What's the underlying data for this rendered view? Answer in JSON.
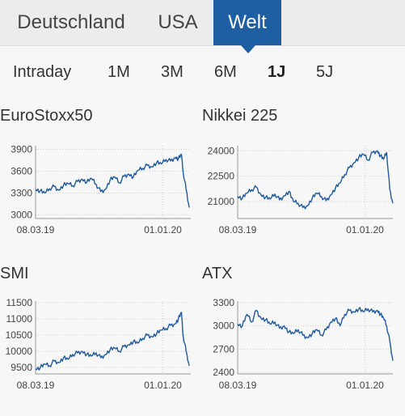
{
  "region_tabs": [
    {
      "label": "Deutschland",
      "active": false
    },
    {
      "label": "USA",
      "active": false
    },
    {
      "label": "Welt",
      "active": true
    }
  ],
  "range_tabs": [
    {
      "label": "Intraday",
      "active": false
    },
    {
      "label": "1M",
      "active": false
    },
    {
      "label": "3M",
      "active": false
    },
    {
      "label": "6M",
      "active": false
    },
    {
      "label": "1J",
      "active": true
    },
    {
      "label": "5J",
      "active": false
    }
  ],
  "colors": {
    "accent": "#1e5fa3",
    "line": "#1f5a9e",
    "grid": "#cfcfcf"
  },
  "chart_data": [
    {
      "type": "line",
      "title": "EuroStoxx50",
      "y_ticks": [
        "3900",
        "3600",
        "3300",
        "3000"
      ],
      "y_tick_values": [
        3900,
        3600,
        3300,
        3000
      ],
      "x_ticks": [
        "08.03.19",
        "01.01.20"
      ],
      "x_tick_positions": [
        0.0,
        0.82
      ],
      "ylim": [
        2950,
        3950
      ],
      "grid": true,
      "series": [
        {
          "x": [
            0.0,
            0.03,
            0.06,
            0.09,
            0.12,
            0.15,
            0.18,
            0.21,
            0.24,
            0.27,
            0.3,
            0.33,
            0.36,
            0.39,
            0.42,
            0.45,
            0.48,
            0.51,
            0.54,
            0.57,
            0.6,
            0.63,
            0.66,
            0.69,
            0.72,
            0.75,
            0.78,
            0.81,
            0.84,
            0.87,
            0.9,
            0.92,
            0.94,
            0.95,
            0.97,
            0.99
          ],
          "values": [
            3350,
            3330,
            3300,
            3360,
            3390,
            3340,
            3410,
            3430,
            3400,
            3460,
            3490,
            3450,
            3500,
            3420,
            3320,
            3350,
            3480,
            3520,
            3440,
            3530,
            3560,
            3520,
            3610,
            3640,
            3680,
            3660,
            3720,
            3700,
            3760,
            3740,
            3790,
            3770,
            3830,
            3600,
            3350,
            3100
          ]
        }
      ]
    },
    {
      "type": "line",
      "title": "Nikkei 225",
      "y_ticks": [
        "24000",
        "22500",
        "21000"
      ],
      "y_tick_values": [
        24000,
        22500,
        21000
      ],
      "x_ticks": [
        "08.03.19",
        "01.01.20"
      ],
      "x_tick_positions": [
        0.0,
        0.82
      ],
      "ylim": [
        20000,
        24300
      ],
      "grid": true,
      "series": [
        {
          "x": [
            0.0,
            0.03,
            0.06,
            0.09,
            0.12,
            0.15,
            0.18,
            0.21,
            0.24,
            0.27,
            0.3,
            0.33,
            0.36,
            0.39,
            0.42,
            0.45,
            0.48,
            0.51,
            0.54,
            0.57,
            0.6,
            0.63,
            0.66,
            0.69,
            0.72,
            0.75,
            0.78,
            0.81,
            0.84,
            0.87,
            0.9,
            0.92,
            0.94,
            0.96,
            0.98,
            1.0
          ],
          "values": [
            21300,
            21200,
            21500,
            21700,
            21850,
            21400,
            21250,
            21150,
            21450,
            21100,
            21350,
            21600,
            21000,
            20900,
            20650,
            20750,
            21200,
            21500,
            21300,
            21050,
            21400,
            21800,
            22100,
            22600,
            23000,
            23300,
            23600,
            23800,
            23450,
            23900,
            24000,
            23700,
            23500,
            23900,
            21700,
            20900
          ]
        }
      ]
    },
    {
      "type": "line",
      "title": "SMI",
      "y_ticks": [
        "11500",
        "11000",
        "10500",
        "10000",
        "9500"
      ],
      "y_tick_values": [
        11500,
        11000,
        10500,
        10000,
        9500
      ],
      "x_ticks": [
        "08.03.19",
        "01.01.20"
      ],
      "x_tick_positions": [
        0.0,
        0.82
      ],
      "ylim": [
        9300,
        11550
      ],
      "grid": true,
      "series": [
        {
          "x": [
            0.0,
            0.03,
            0.06,
            0.09,
            0.12,
            0.15,
            0.18,
            0.21,
            0.24,
            0.27,
            0.3,
            0.33,
            0.36,
            0.39,
            0.42,
            0.45,
            0.48,
            0.51,
            0.54,
            0.57,
            0.6,
            0.63,
            0.66,
            0.69,
            0.72,
            0.75,
            0.78,
            0.81,
            0.84,
            0.87,
            0.9,
            0.92,
            0.94,
            0.95,
            0.97,
            0.99
          ],
          "values": [
            9450,
            9500,
            9600,
            9550,
            9700,
            9650,
            9800,
            9750,
            9900,
            9950,
            10000,
            9900,
            9850,
            9950,
            9800,
            9900,
            10050,
            10100,
            10000,
            10150,
            10200,
            10300,
            10250,
            10400,
            10500,
            10450,
            10550,
            10650,
            10700,
            10800,
            10850,
            11000,
            11200,
            10500,
            10000,
            9550
          ]
        }
      ]
    },
    {
      "type": "line",
      "title": "ATX",
      "y_ticks": [
        "3300",
        "3000",
        "2700",
        "2400"
      ],
      "y_tick_values": [
        3300,
        3000,
        2700,
        2400
      ],
      "x_ticks": [
        "08.03.19",
        "01.01.20"
      ],
      "x_tick_positions": [
        0.0,
        0.82
      ],
      "ylim": [
        2380,
        3320
      ],
      "grid": true,
      "series": [
        {
          "x": [
            0.0,
            0.03,
            0.06,
            0.09,
            0.12,
            0.15,
            0.18,
            0.21,
            0.24,
            0.27,
            0.3,
            0.33,
            0.36,
            0.39,
            0.42,
            0.45,
            0.48,
            0.51,
            0.54,
            0.57,
            0.6,
            0.63,
            0.66,
            0.69,
            0.72,
            0.75,
            0.78,
            0.81,
            0.84,
            0.87,
            0.9,
            0.92,
            0.94,
            0.96,
            0.98,
            1.0
          ],
          "values": [
            3020,
            3000,
            3150,
            3050,
            3200,
            3100,
            3080,
            3020,
            3050,
            2970,
            3000,
            2920,
            2900,
            2950,
            2880,
            2850,
            2900,
            2950,
            2880,
            2950,
            3050,
            3100,
            3000,
            3150,
            3200,
            3180,
            3220,
            3180,
            3220,
            3180,
            3200,
            3150,
            3100,
            3000,
            2800,
            2550
          ]
        }
      ]
    }
  ]
}
